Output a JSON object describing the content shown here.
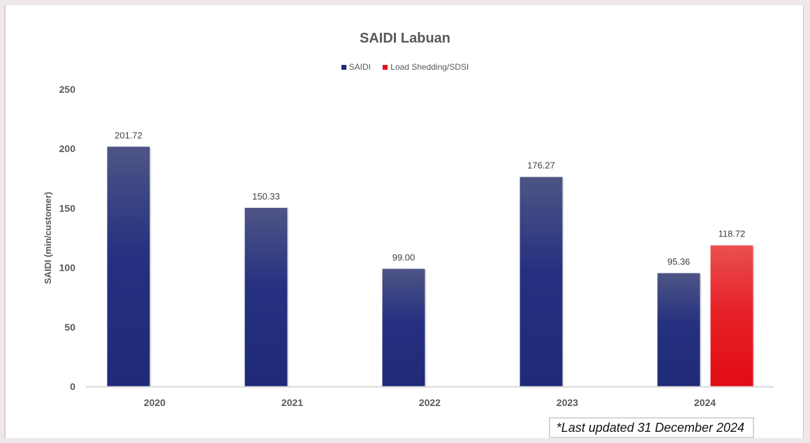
{
  "chart_data": {
    "type": "bar",
    "title": "SAIDI Labuan",
    "xlabel": "",
    "ylabel": "SAIDI (min/customer)",
    "ylim": [
      0,
      250
    ],
    "yticks": [
      "0",
      "50",
      "100",
      "150",
      "200",
      "250"
    ],
    "categories": [
      "2020",
      "2021",
      "2022",
      "2023",
      "2024"
    ],
    "series": [
      {
        "name": "SAIDI",
        "color": "#1f2a78",
        "values": [
          201.72,
          150.33,
          99.0,
          176.27,
          95.36
        ],
        "labels": [
          "201.72",
          "150.33",
          "99.00",
          "176.27",
          "95.36"
        ]
      },
      {
        "name": "Load Shedding/SDSI",
        "color": "#e3101a",
        "values": [
          null,
          null,
          null,
          null,
          118.72
        ],
        "labels": [
          null,
          null,
          null,
          null,
          "118.72"
        ]
      }
    ],
    "legend": "top-center",
    "grid": false
  },
  "note": "*Last updated 31 December 2024"
}
